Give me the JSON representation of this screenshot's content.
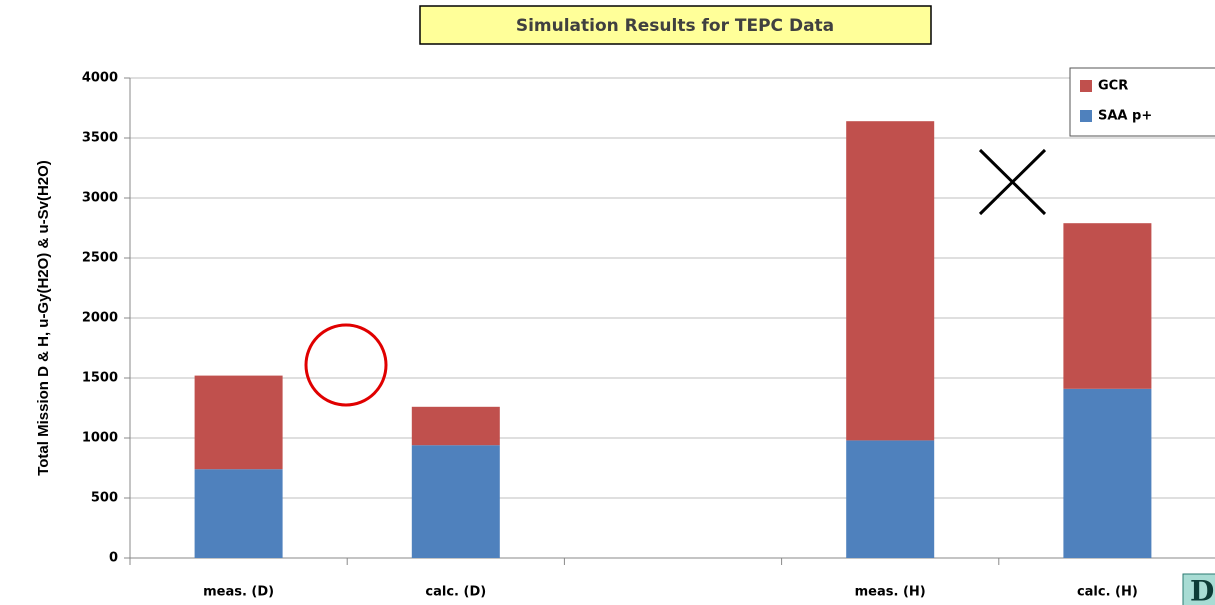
{
  "chart_data": {
    "type": "bar",
    "stacked": true,
    "title": "Simulation Results for TEPC Data",
    "y_label": "Total Mission D & H, u-Gy(H2O) & u-Sv(H2O)",
    "categories": [
      "meas. (D)",
      "calc. (D)",
      null,
      "meas. (H)",
      "calc. (H)"
    ],
    "series": [
      {
        "name": "SAA p+",
        "color": "#4f81bd",
        "values": [
          740,
          940,
          null,
          980,
          1410
        ]
      },
      {
        "name": "GCR",
        "color": "#c0504d",
        "values": [
          780,
          320,
          null,
          2660,
          1380
        ]
      }
    ],
    "ylim": [
      0,
      4000
    ],
    "yticks": [
      0,
      500,
      1000,
      1500,
      2000,
      2500,
      3000,
      3500,
      4000
    ],
    "grid": true,
    "legend": "top-right",
    "corner_text": "D"
  }
}
